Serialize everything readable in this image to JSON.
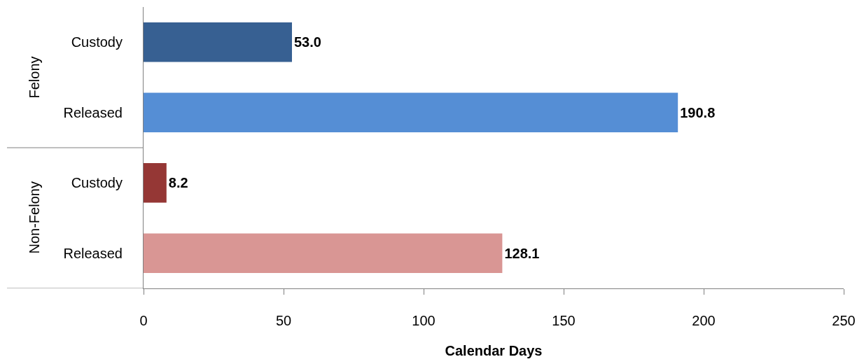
{
  "chart_data": {
    "type": "bar",
    "orientation": "horizontal",
    "categories": [
      "Custody",
      "Released",
      "Custody",
      "Released"
    ],
    "values": [
      53.0,
      190.8,
      8.2,
      128.1
    ],
    "colors": [
      "#376092",
      "#558ed5",
      "#953735",
      "#d99694"
    ],
    "value_labels": [
      "53.0",
      "190.8",
      "8.2",
      "128.1"
    ],
    "annotations": [
      "Felony",
      "Non-Felony"
    ],
    "xlabel": "Calendar Days",
    "xlim": [
      0,
      250
    ],
    "xticks": [
      0,
      50,
      100,
      150,
      200,
      250
    ]
  }
}
